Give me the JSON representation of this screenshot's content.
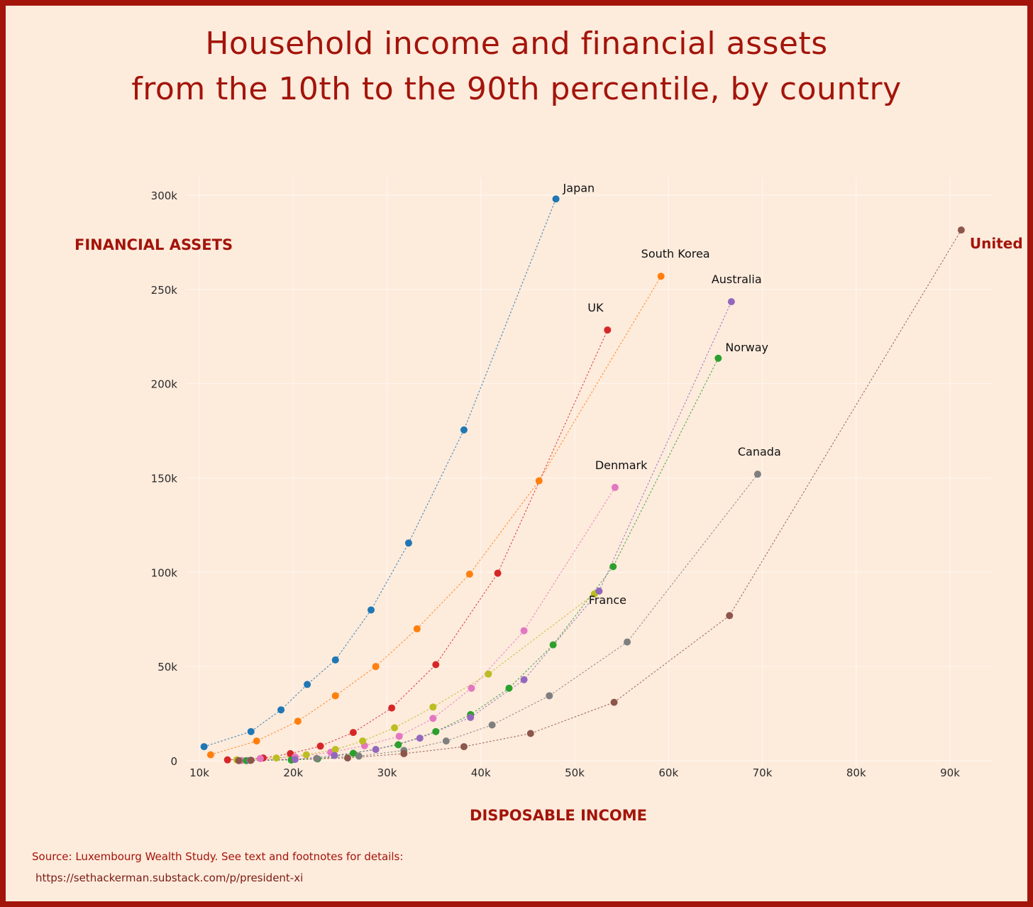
{
  "title": {
    "line1": "Household income and financial assets",
    "line2": "from the 10th to the 90th percentile, by country"
  },
  "source": {
    "text": "Source: Luxembourg Wealth Study. See text and footnotes for details:",
    "url": "https://sethackerman.substack.com/p/president-xi"
  },
  "chart_data": {
    "type": "scatter",
    "title": "Household income and financial assets from the 10th to the 90th percentile, by country",
    "xlabel": "DISPOSABLE INCOME",
    "ylabel": "FINANCIAL ASSETS",
    "xlim": [
      9000,
      93000
    ],
    "ylim": [
      0,
      310000
    ],
    "x_ticks": [
      10000,
      20000,
      30000,
      40000,
      50000,
      60000,
      70000,
      80000,
      90000
    ],
    "x_tick_labels": [
      "10k",
      "20k",
      "30k",
      "40k",
      "50k",
      "60k",
      "70k",
      "80k",
      "90k"
    ],
    "y_ticks": [
      0,
      50000,
      100000,
      150000,
      200000,
      250000,
      300000
    ],
    "y_tick_labels": [
      "0",
      "50k",
      "100k",
      "150k",
      "200k",
      "250k",
      "300k"
    ],
    "grid": true,
    "series": [
      {
        "name": "Japan",
        "color": "#1f77b4",
        "label_color": "#111111",
        "label_pos": "right",
        "x": [
          10500,
          15500,
          18700,
          21500,
          24500,
          28300,
          32300,
          38200,
          48000
        ],
        "y": [
          7500,
          15500,
          27000,
          40500,
          53500,
          80000,
          115500,
          175500,
          298000
        ]
      },
      {
        "name": "South Korea",
        "color": "#ff7f0e",
        "label_color": "#111111",
        "label_pos": "above",
        "x": [
          11200,
          16100,
          20500,
          24500,
          28800,
          33200,
          38800,
          46200,
          59200
        ],
        "y": [
          3200,
          10500,
          21000,
          34500,
          50000,
          70000,
          99000,
          148500,
          257000
        ]
      },
      {
        "name": "UK",
        "color": "#d62728",
        "label_color": "#111111",
        "label_pos": "above",
        "x": [
          13000,
          16800,
          19700,
          22900,
          26400,
          30500,
          35200,
          41800,
          53500
        ],
        "y": [
          500,
          1500,
          3800,
          7800,
          15000,
          28000,
          51000,
          99500,
          228500
        ]
      },
      {
        "name": "Denmark",
        "color": "#e377c2",
        "label_color": "#111111",
        "label_pos": "above",
        "x": [
          14500,
          16500,
          20200,
          24000,
          27600,
          31300,
          34900,
          39000,
          44600,
          54300
        ],
        "y": [
          200,
          1200,
          2000,
          4500,
          8000,
          13000,
          22500,
          38500,
          69000,
          145000
        ]
      },
      {
        "name": "France",
        "color": "#bcbd22",
        "label_color": "#111111",
        "label_pos": "below",
        "x": [
          14000,
          18200,
          21400,
          24500,
          27400,
          30800,
          34900,
          40800,
          52100
        ],
        "y": [
          500,
          1500,
          3200,
          6000,
          10500,
          17500,
          28500,
          46000,
          88500
        ]
      },
      {
        "name": "Norway",
        "color": "#2ca02c",
        "label_color": "#111111",
        "label_pos": "right",
        "x": [
          15000,
          19800,
          22600,
          26400,
          31200,
          35200,
          38900,
          43000,
          47700,
          54100,
          65300
        ],
        "y": [
          100,
          400,
          1000,
          4000,
          8500,
          15500,
          24500,
          38500,
          61500,
          103000,
          213500
        ]
      },
      {
        "name": "Australia",
        "color": "#9467bd",
        "label_color": "#111111",
        "label_pos": "above",
        "x": [
          15400,
          20200,
          24400,
          28800,
          33500,
          38900,
          44600,
          52600,
          66700
        ],
        "y": [
          200,
          700,
          2800,
          6000,
          12000,
          23000,
          43000,
          90000,
          243500
        ]
      },
      {
        "name": "Canada",
        "color": "#7f7f7f",
        "label_color": "#111111",
        "label_pos": "above",
        "x": [
          22500,
          27000,
          31800,
          36300,
          41200,
          47300,
          55600,
          69500
        ],
        "y": [
          1200,
          2500,
          5500,
          10500,
          19000,
          34500,
          63000,
          152000
        ]
      },
      {
        "name": "United States",
        "color": "#8c564b",
        "label_color": "#a3140a",
        "label_pos": "below-right",
        "x": [
          14200,
          15500,
          25800,
          31800,
          38200,
          45300,
          54200,
          66500,
          91200
        ],
        "y": [
          100,
          300,
          1500,
          3800,
          7500,
          14500,
          31000,
          77000,
          281500
        ]
      }
    ]
  }
}
